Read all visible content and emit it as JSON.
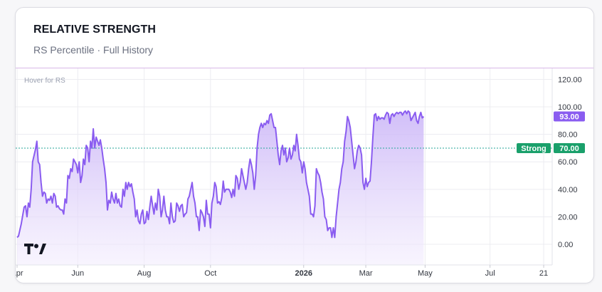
{
  "header": {
    "title": "RELATIVE STRENGTH",
    "subtitle": "RS Percentile · Full History"
  },
  "hover_hint": "Hover for RS",
  "logo_text": "TV",
  "colors": {
    "line": "#8a5cf0",
    "fill_top": "#c9b3f7",
    "fill_bottom": "#f3edfd",
    "strong_line": "#26a69a",
    "strong_badge": "#1aa06b",
    "value_badge": "#8a5cf0",
    "grid": "#ececf1",
    "axis_text": "#333740"
  },
  "chart_data": {
    "type": "area",
    "title": "",
    "ylim": [
      -15,
      128
    ],
    "y_ticks": [
      "120.00",
      "100.00",
      "80.00",
      "60.00",
      "40.00",
      "20.00",
      "0.00"
    ],
    "y_tick_values": [
      120,
      100,
      80,
      60,
      40,
      20,
      0
    ],
    "x_ticks": [
      {
        "label": "Apr",
        "x": 0
      },
      {
        "label": "Jun",
        "x": 43
      },
      {
        "label": "Aug",
        "x": 90
      },
      {
        "label": "Oct",
        "x": 137
      },
      {
        "label": "2026",
        "x": 203
      },
      {
        "label": "Mar",
        "x": 247
      },
      {
        "label": "May",
        "x": 289
      },
      {
        "label": "Jul",
        "x": 335
      },
      {
        "label": "21",
        "x": 373
      }
    ],
    "x_range": [
      -1,
      376
    ],
    "current_value": 93.0,
    "current_value_label": "93.00",
    "threshold": {
      "label": "Strong",
      "value": 70.0,
      "value_label": "70.00"
    },
    "grid": true,
    "values": [
      [
        0,
        5
      ],
      [
        1,
        6
      ],
      [
        3,
        15
      ],
      [
        5,
        27
      ],
      [
        6,
        28
      ],
      [
        7,
        20
      ],
      [
        8,
        30
      ],
      [
        9,
        27
      ],
      [
        10,
        40
      ],
      [
        11,
        60
      ],
      [
        13,
        69
      ],
      [
        14,
        75
      ],
      [
        15,
        60
      ],
      [
        16,
        58
      ],
      [
        17,
        45
      ],
      [
        18,
        35
      ],
      [
        19,
        38
      ],
      [
        20,
        37
      ],
      [
        21,
        30
      ],
      [
        22,
        33
      ],
      [
        23,
        32
      ],
      [
        24,
        35
      ],
      [
        25,
        30
      ],
      [
        26,
        37
      ],
      [
        27,
        35
      ],
      [
        28,
        27
      ],
      [
        29,
        28
      ],
      [
        30,
        26
      ],
      [
        31,
        25
      ],
      [
        32,
        25
      ],
      [
        33,
        22
      ],
      [
        34,
        33
      ],
      [
        35,
        30
      ],
      [
        36,
        50
      ],
      [
        37,
        48
      ],
      [
        38,
        55
      ],
      [
        39,
        53
      ],
      [
        40,
        62
      ],
      [
        41,
        60
      ],
      [
        42,
        58
      ],
      [
        43,
        52
      ],
      [
        44,
        60
      ],
      [
        45,
        45
      ],
      [
        46,
        50
      ],
      [
        47,
        62
      ],
      [
        48,
        58
      ],
      [
        49,
        72
      ],
      [
        50,
        70
      ],
      [
        51,
        60
      ],
      [
        52,
        75
      ],
      [
        53,
        70
      ],
      [
        54,
        84
      ],
      [
        55,
        70
      ],
      [
        56,
        78
      ],
      [
        57,
        75
      ],
      [
        58,
        72
      ],
      [
        59,
        76
      ],
      [
        60,
        70
      ],
      [
        61,
        62
      ],
      [
        62,
        55
      ],
      [
        63,
        45
      ],
      [
        64,
        25
      ],
      [
        65,
        32
      ],
      [
        66,
        30
      ],
      [
        67,
        38
      ],
      [
        68,
        33
      ],
      [
        69,
        30
      ],
      [
        70,
        37
      ],
      [
        71,
        30
      ],
      [
        72,
        33
      ],
      [
        73,
        28
      ],
      [
        74,
        27
      ],
      [
        75,
        40
      ],
      [
        76,
        35
      ],
      [
        77,
        45
      ],
      [
        78,
        40
      ],
      [
        79,
        45
      ],
      [
        80,
        42
      ],
      [
        81,
        44
      ],
      [
        82,
        38
      ],
      [
        83,
        33
      ],
      [
        84,
        20
      ],
      [
        85,
        25
      ],
      [
        86,
        17
      ],
      [
        87,
        15
      ],
      [
        88,
        22
      ],
      [
        89,
        25
      ],
      [
        90,
        15
      ],
      [
        91,
        16
      ],
      [
        92,
        24
      ],
      [
        93,
        18
      ],
      [
        94,
        27
      ],
      [
        95,
        35
      ],
      [
        96,
        28
      ],
      [
        97,
        22
      ],
      [
        98,
        30
      ],
      [
        99,
        25
      ],
      [
        100,
        40
      ],
      [
        101,
        35
      ],
      [
        102,
        20
      ],
      [
        103,
        25
      ],
      [
        104,
        35
      ],
      [
        105,
        25
      ],
      [
        106,
        20
      ],
      [
        107,
        20
      ],
      [
        108,
        15
      ],
      [
        109,
        30
      ],
      [
        110,
        20
      ],
      [
        111,
        16
      ],
      [
        112,
        17
      ],
      [
        113,
        30
      ],
      [
        114,
        28
      ],
      [
        115,
        24
      ],
      [
        116,
        28
      ],
      [
        117,
        29
      ],
      [
        118,
        20
      ],
      [
        119,
        22
      ],
      [
        120,
        23
      ],
      [
        121,
        33
      ],
      [
        122,
        35
      ],
      [
        123,
        40
      ],
      [
        124,
        45
      ],
      [
        125,
        35
      ],
      [
        126,
        30
      ],
      [
        127,
        20
      ],
      [
        128,
        20
      ],
      [
        129,
        10
      ],
      [
        130,
        25
      ],
      [
        131,
        23
      ],
      [
        132,
        20
      ],
      [
        133,
        13
      ],
      [
        134,
        32
      ],
      [
        135,
        22
      ],
      [
        136,
        22
      ],
      [
        137,
        12
      ],
      [
        138,
        30
      ],
      [
        139,
        35
      ],
      [
        140,
        45
      ],
      [
        141,
        42
      ],
      [
        142,
        30
      ],
      [
        143,
        31
      ],
      [
        144,
        29
      ],
      [
        145,
        34
      ],
      [
        146,
        46
      ],
      [
        147,
        38
      ],
      [
        148,
        40
      ],
      [
        149,
        40
      ],
      [
        150,
        40
      ],
      [
        151,
        38
      ],
      [
        152,
        34
      ],
      [
        153,
        40
      ],
      [
        154,
        35
      ],
      [
        155,
        50
      ],
      [
        156,
        48
      ],
      [
        157,
        40
      ],
      [
        158,
        45
      ],
      [
        159,
        55
      ],
      [
        160,
        50
      ],
      [
        161,
        45
      ],
      [
        162,
        40
      ],
      [
        163,
        45
      ],
      [
        164,
        55
      ],
      [
        165,
        62
      ],
      [
        166,
        58
      ],
      [
        167,
        52
      ],
      [
        168,
        40
      ],
      [
        169,
        50
      ],
      [
        170,
        70
      ],
      [
        171,
        80
      ],
      [
        172,
        85
      ],
      [
        173,
        88
      ],
      [
        174,
        85
      ],
      [
        175,
        88
      ],
      [
        176,
        87
      ],
      [
        177,
        90
      ],
      [
        178,
        88
      ],
      [
        179,
        94
      ],
      [
        180,
        95
      ],
      [
        181,
        90
      ],
      [
        182,
        85
      ],
      [
        183,
        85
      ],
      [
        184,
        75
      ],
      [
        185,
        65
      ],
      [
        186,
        58
      ],
      [
        187,
        68
      ],
      [
        188,
        72
      ],
      [
        189,
        65
      ],
      [
        190,
        70
      ],
      [
        191,
        60
      ],
      [
        192,
        63
      ],
      [
        193,
        70
      ],
      [
        194,
        62
      ],
      [
        195,
        65
      ],
      [
        196,
        72
      ],
      [
        197,
        68
      ],
      [
        198,
        80
      ],
      [
        199,
        72
      ],
      [
        200,
        62
      ],
      [
        201,
        60
      ],
      [
        202,
        52
      ],
      [
        203,
        60
      ],
      [
        204,
        55
      ],
      [
        205,
        45
      ],
      [
        206,
        40
      ],
      [
        207,
        35
      ],
      [
        208,
        22
      ],
      [
        209,
        22
      ],
      [
        210,
        20
      ],
      [
        211,
        28
      ],
      [
        212,
        55
      ],
      [
        213,
        52
      ],
      [
        214,
        50
      ],
      [
        215,
        45
      ],
      [
        216,
        38
      ],
      [
        217,
        33
      ],
      [
        218,
        20
      ],
      [
        219,
        18
      ],
      [
        220,
        10
      ],
      [
        221,
        12
      ],
      [
        222,
        12
      ],
      [
        223,
        5
      ],
      [
        224,
        12
      ],
      [
        225,
        5
      ],
      [
        226,
        20
      ],
      [
        227,
        30
      ],
      [
        228,
        40
      ],
      [
        229,
        45
      ],
      [
        230,
        55
      ],
      [
        231,
        60
      ],
      [
        232,
        75
      ],
      [
        233,
        82
      ],
      [
        234,
        93
      ],
      [
        235,
        90
      ],
      [
        236,
        85
      ],
      [
        237,
        75
      ],
      [
        238,
        65
      ],
      [
        239,
        55
      ],
      [
        240,
        60
      ],
      [
        241,
        68
      ],
      [
        242,
        72
      ],
      [
        243,
        70
      ],
      [
        244,
        65
      ],
      [
        245,
        45
      ],
      [
        246,
        40
      ],
      [
        247,
        48
      ],
      [
        248,
        42
      ],
      [
        249,
        45
      ],
      [
        250,
        46
      ],
      [
        251,
        60
      ],
      [
        252,
        78
      ],
      [
        253,
        94
      ],
      [
        254,
        95
      ],
      [
        255,
        90
      ],
      [
        256,
        93
      ],
      [
        257,
        91
      ],
      [
        258,
        92
      ],
      [
        259,
        92
      ],
      [
        260,
        91
      ],
      [
        261,
        94
      ],
      [
        262,
        96
      ],
      [
        263,
        95
      ],
      [
        264,
        88
      ],
      [
        265,
        94
      ],
      [
        266,
        95
      ],
      [
        267,
        93
      ],
      [
        268,
        95
      ],
      [
        269,
        96
      ],
      [
        270,
        95
      ],
      [
        271,
        96
      ],
      [
        272,
        96
      ],
      [
        273,
        94
      ],
      [
        274,
        96
      ],
      [
        275,
        97
      ],
      [
        276,
        95
      ],
      [
        277,
        97
      ],
      [
        278,
        96
      ],
      [
        279,
        90
      ],
      [
        280,
        92
      ],
      [
        281,
        94
      ],
      [
        282,
        96
      ],
      [
        283,
        90
      ],
      [
        284,
        88
      ],
      [
        285,
        93
      ],
      [
        286,
        96
      ],
      [
        287,
        92
      ],
      [
        288,
        93
      ]
    ]
  }
}
